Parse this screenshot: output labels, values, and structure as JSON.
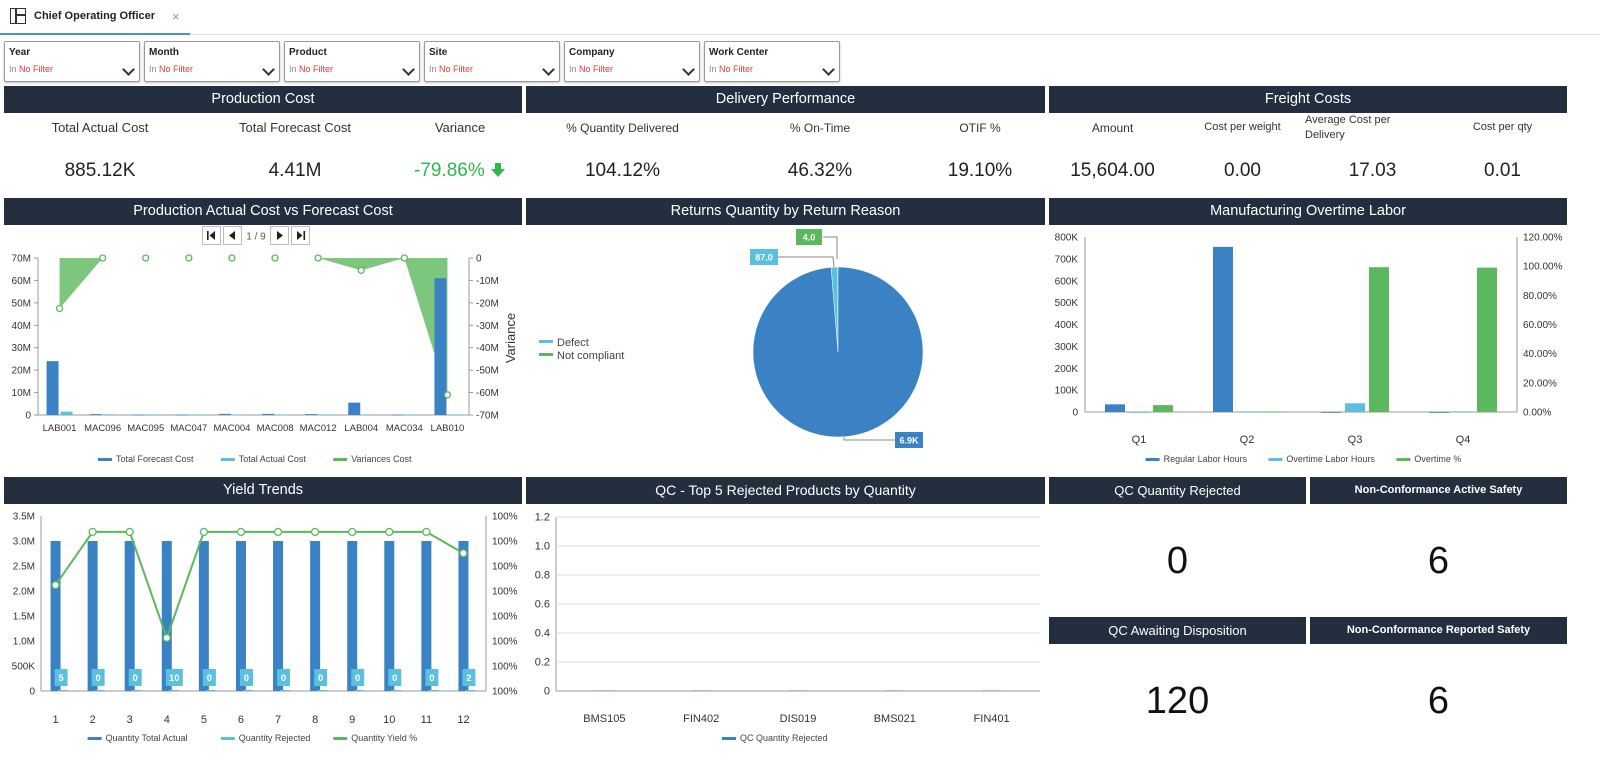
{
  "tab": {
    "title": "Chief Operating Officer",
    "close": "×",
    "icon": "dashboard-icon"
  },
  "filters": [
    {
      "label": "Year",
      "in": "In",
      "value": "No Filter"
    },
    {
      "label": "Month",
      "in": "In",
      "value": "No Filter"
    },
    {
      "label": "Product",
      "in": "In",
      "value": "No Filter"
    },
    {
      "label": "Site",
      "in": "In",
      "value": "No Filter"
    },
    {
      "label": "Company",
      "in": "In",
      "value": "No Filter"
    },
    {
      "label": "Work Center",
      "in": "In",
      "value": "No Filter"
    }
  ],
  "production_cost": {
    "title": "Production Cost",
    "total_actual_label": "Total Actual Cost",
    "total_actual_value": "885.12K",
    "total_forecast_label": "Total Forecast Cost",
    "total_forecast_value": "4.41M",
    "variance_label": "Variance",
    "variance_value": "-79.86%"
  },
  "delivery": {
    "title": "Delivery Performance",
    "qty_label": "% Quantity Delivered",
    "qty_value": "104.12%",
    "ontime_label": "% On-Time",
    "ontime_value": "46.32%",
    "otif_label": "OTIF %",
    "otif_value": "19.10%"
  },
  "freight": {
    "title": "Freight Costs",
    "amount_label": "Amount",
    "amount_value": "15,604.00",
    "weight_label": "Cost per weight",
    "weight_value": "0.00",
    "avg_label": "Average Cost per Delivery",
    "avg_value": "17.03",
    "qty_label": "Cost per qty",
    "qty_value": "0.01"
  },
  "qc_rejected": {
    "title": "QC Quantity Rejected",
    "value": "0"
  },
  "nc_active": {
    "title": "Non-Conformance Active Safety",
    "value": "6"
  },
  "qc_awaiting": {
    "title": "QC Awaiting Disposition",
    "value": "120"
  },
  "nc_reported": {
    "title": "Non-Conformance Reported Safety",
    "value": "6"
  },
  "chart_data": [
    {
      "id": "prod",
      "type": "bar",
      "title": "Production Actual Cost vs Forecast Cost",
      "pager": "1 / 9",
      "categories": [
        "LAB001",
        "MAC096",
        "MAC095",
        "MAC047",
        "MAC004",
        "MAC008",
        "MAC012",
        "LAB004",
        "MAC034",
        "LAB010"
      ],
      "series": [
        {
          "name": "Total Forecast Cost",
          "kind": "bar",
          "color": "#3b82c4",
          "values": [
            24000000,
            400000,
            200000,
            200000,
            500000,
            500000,
            400000,
            5500000,
            200000,
            61000000
          ]
        },
        {
          "name": "Total Actual Cost",
          "kind": "bar",
          "color": "#5bc0de",
          "values": [
            1500000,
            300000,
            100000,
            100000,
            200000,
            200000,
            100000,
            100000,
            100000,
            100000
          ]
        },
        {
          "name": "Variances Cost",
          "kind": "area",
          "color": "#5cb85c",
          "axis": "right",
          "values": [
            -22500000,
            0,
            0,
            0,
            0,
            0,
            0,
            -5500000,
            0,
            -61000000
          ]
        }
      ],
      "left_ticks": [
        "0",
        "10M",
        "20M",
        "30M",
        "40M",
        "50M",
        "60M",
        "70M"
      ],
      "right_ticks": [
        "0",
        "-10M",
        "-20M",
        "-30M",
        "-40M",
        "-50M",
        "-60M",
        "-70M"
      ],
      "ylabel_right": "Variance",
      "ylim": [
        0,
        70000000
      ],
      "ylim_right": [
        -70000000,
        0
      ]
    },
    {
      "id": "returns",
      "type": "pie",
      "title": "Returns Quantity by Return Reason",
      "slices": [
        {
          "name": "Defect",
          "value": 87.0,
          "label": "87.0",
          "color": "#5bc0de"
        },
        {
          "name": "Not compliant",
          "value": 4.0,
          "label": "4.0",
          "color": "#5cb85c"
        },
        {
          "name": "",
          "value": 6900,
          "label": "6.9K",
          "color": "#3b82c4"
        }
      ],
      "legend": [
        "Defect",
        "Not compliant"
      ]
    },
    {
      "id": "overtime",
      "type": "bar",
      "title": "Manufacturing Overtime Labor",
      "categories": [
        "Q1",
        "Q2",
        "Q3",
        "Q4"
      ],
      "series": [
        {
          "name": "Regular Labor Hours",
          "color": "#3b82c4",
          "values": [
            35000,
            755000,
            0,
            0
          ]
        },
        {
          "name": "Overtime Labor Hours",
          "color": "#5bc0de",
          "values": [
            0,
            3000,
            40000,
            3000
          ]
        },
        {
          "name": "Overtime %",
          "color": "#5cb85c",
          "axis": "right",
          "values": [
            0.047,
            0.004,
            0.993,
            0.99
          ]
        }
      ],
      "left_ticks": [
        "0",
        "100K",
        "200K",
        "300K",
        "400K",
        "500K",
        "600K",
        "700K",
        "800K"
      ],
      "right_ticks": [
        "0.00%",
        "20.00%",
        "40.00%",
        "60.00%",
        "80.00%",
        "100.00%",
        "120.00%"
      ],
      "ylim": [
        0,
        800000
      ],
      "ylim_right": [
        0,
        1.2
      ]
    },
    {
      "id": "yield",
      "type": "bar",
      "title": "Yield Trends",
      "categories": [
        "1",
        "2",
        "3",
        "4",
        "5",
        "6",
        "7",
        "8",
        "9",
        "10",
        "11",
        "12"
      ],
      "series": [
        {
          "name": "Quantity Total Actual",
          "color": "#3b82c4",
          "values": [
            3000000,
            3000000,
            3000000,
            3000000,
            3000000,
            3000000,
            3000000,
            3000000,
            3000000,
            3000000,
            3000000,
            3000000
          ]
        },
        {
          "name": "Quantity Rejected",
          "color": "#5bc0de",
          "values": [
            5,
            0,
            0,
            10,
            0,
            0,
            0,
            0,
            0,
            0,
            0,
            2
          ],
          "labels": [
            "5",
            "0",
            "0",
            "10",
            "0",
            "0",
            "0",
            "0",
            "0",
            "0",
            "0",
            "2"
          ]
        },
        {
          "name": "Quantity Yield %",
          "color": "#5cb85c",
          "axis": "right",
          "values": [
            0.99999833,
            1,
            1,
            0.99999667,
            1,
            1,
            1,
            1,
            1,
            1,
            1,
            0.99999933
          ]
        }
      ],
      "left_ticks": [
        "0",
        "500K",
        "1.0M",
        "1.5M",
        "2.0M",
        "2.5M",
        "3.0M",
        "3.5M"
      ],
      "right_ticks": [
        "100%",
        "100%",
        "100%",
        "100%",
        "100%",
        "100%",
        "100%",
        "100%"
      ],
      "ylim": [
        0,
        3500000
      ],
      "ylim_right": [
        0.999995,
        1.0000005
      ]
    },
    {
      "id": "qc",
      "type": "bar",
      "title": "QC - Top 5 Rejected Products by Quantity",
      "categories": [
        "BMS105",
        "FIN402",
        "DIS019",
        "BMS021",
        "FIN401"
      ],
      "series": [
        {
          "name": "QC Quantity Rejected",
          "color": "#3b82c4",
          "values": [
            0,
            0,
            0,
            0,
            0
          ]
        }
      ],
      "left_ticks": [
        "0",
        "0.2",
        "0.4",
        "0.6",
        "0.8",
        "1.0",
        "1.2"
      ],
      "ylim": [
        0,
        1.2
      ],
      "grid": true
    }
  ]
}
